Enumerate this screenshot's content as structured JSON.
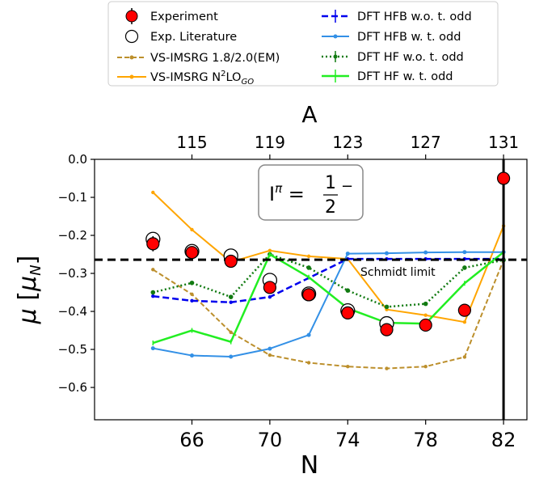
{
  "chart_data": {
    "type": "scatter",
    "xlabel": "N",
    "x2label": "A",
    "ylabel_symbol": "μ",
    "ylabel_unit_base": "μ",
    "ylabel_unit_sub": "N",
    "xlim": [
      61,
      83.2
    ],
    "ylim": [
      -0.685,
      0.0
    ],
    "xticks": [
      66,
      70,
      74,
      78,
      82
    ],
    "x2ticks": [
      {
        "label": "115",
        "n": 66
      },
      {
        "label": "119",
        "n": 70
      },
      {
        "label": "123",
        "n": 74
      },
      {
        "label": "127",
        "n": 78
      },
      {
        "label": "131",
        "n": 82
      }
    ],
    "yticks": [
      0.0,
      -0.1,
      -0.2,
      -0.3,
      -0.4,
      -0.5,
      -0.6
    ],
    "ytick_labels": [
      "0.0",
      "−0.1",
      "−0.2",
      "−0.3",
      "−0.4",
      "−0.5",
      "−0.6"
    ],
    "grid": false,
    "legend_position": "top",
    "annotations": {
      "spin_I": "I",
      "spin_pi": "π",
      "spin_num": "1",
      "spin_den": "2",
      "spin_parity": "−",
      "schmidt_label": "Schmidt limit",
      "schmidt_value": -0.264,
      "vline_n": 82
    },
    "legend": {
      "experiment": "Experiment",
      "literature": "Exp. Literature",
      "vsimsrg_em_text": "VS-IMSRG 1.8/2.0(EM)",
      "vsimsrg_go_prefix": "VS-IMSRG N",
      "vsimsrg_go_sup": "2",
      "vsimsrg_go_mid": "LO",
      "vsimsrg_go_sub": "GO",
      "hfb_wo": "DFT HFB w.o. t. odd",
      "hfb_w": "DFT HFB w. t. odd",
      "hf_wo": "DFT HF w.o. t. odd",
      "hf_w": "DFT HF w. t. odd"
    },
    "colors": {
      "experiment": "#ff0000",
      "vsimsrg_em": "#bc8f2c",
      "vsimsrg_go": "#ffa500",
      "hfb_wo": "#0000ee",
      "hfb_w": "#3390e6",
      "hf_wo": "#117a11",
      "hf_w": "#22ee22"
    },
    "series": [
      {
        "key": "vsimsrg_em",
        "x": [
          64,
          66,
          68,
          70,
          72,
          74,
          76,
          78,
          80,
          82
        ],
        "y": [
          -0.29,
          -0.355,
          -0.455,
          -0.515,
          -0.535,
          -0.545,
          -0.55,
          -0.545,
          -0.52,
          -0.265
        ]
      },
      {
        "key": "vsimsrg_go",
        "x": [
          64,
          66,
          68,
          70,
          72,
          74,
          76,
          78,
          80,
          82
        ],
        "y": [
          -0.087,
          -0.185,
          -0.27,
          -0.24,
          -0.255,
          -0.262,
          -0.395,
          -0.41,
          -0.428,
          -0.175
        ]
      },
      {
        "key": "hfb_wo",
        "x": [
          64,
          66,
          68,
          70,
          74,
          76,
          78,
          80,
          82
        ],
        "y": [
          -0.36,
          -0.372,
          -0.376,
          -0.362,
          -0.262,
          -0.262,
          -0.262,
          -0.262,
          -0.262
        ]
      },
      {
        "key": "hfb_w",
        "x": [
          64,
          66,
          68,
          70,
          72,
          74,
          76,
          78,
          80,
          82
        ],
        "y": [
          -0.497,
          -0.516,
          -0.519,
          -0.498,
          -0.462,
          -0.248,
          -0.247,
          -0.245,
          -0.244,
          -0.244
        ]
      },
      {
        "key": "hf_wo",
        "x": [
          64,
          66,
          68,
          70,
          72,
          74,
          76,
          78,
          80,
          82
        ],
        "y": [
          -0.35,
          -0.325,
          -0.362,
          -0.25,
          -0.285,
          -0.345,
          -0.388,
          -0.38,
          -0.285,
          -0.265
        ]
      },
      {
        "key": "hf_w",
        "x": [
          64,
          66,
          68,
          70,
          72,
          74,
          76,
          78,
          80,
          82
        ],
        "y": [
          -0.483,
          -0.45,
          -0.48,
          -0.25,
          -0.31,
          -0.392,
          -0.43,
          -0.432,
          -0.326,
          -0.244
        ]
      }
    ],
    "experiment": {
      "x": [
        64,
        66,
        68,
        70,
        72,
        74,
        76,
        78,
        80,
        82
      ],
      "y": [
        -0.222,
        -0.245,
        -0.268,
        -0.337,
        -0.356,
        -0.404,
        -0.448,
        -0.436,
        -0.397,
        -0.05
      ],
      "err": [
        0.02,
        0.01,
        0.008,
        0.012,
        0.01,
        0.01,
        0.015,
        0.01,
        0.01,
        0.015
      ]
    },
    "literature": {
      "x": [
        64,
        66,
        68,
        70,
        72,
        74,
        76
      ],
      "y": [
        -0.21,
        -0.242,
        -0.254,
        -0.318,
        -0.354,
        -0.398,
        -0.432
      ]
    }
  }
}
